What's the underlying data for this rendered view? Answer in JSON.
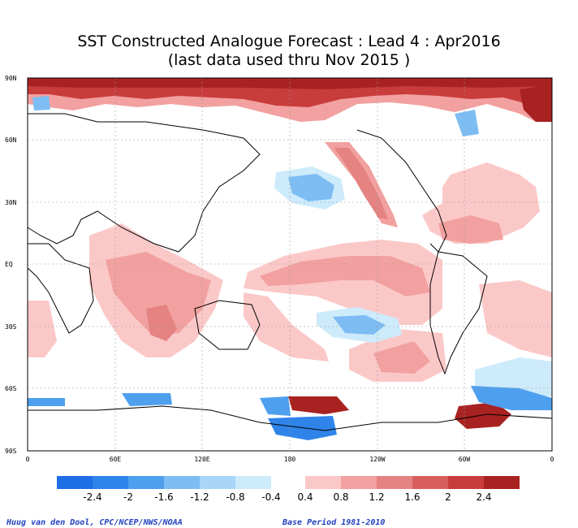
{
  "title_line1": "SST Constructed Analogue Forecast : Lead 4 : Apr2016",
  "title_line2": "(last data used thru Nov 2015 )",
  "lat_labels": [
    "90N",
    "60N",
    "30N",
    "EQ",
    "30S",
    "60S",
    "90S"
  ],
  "lon_labels": [
    "0",
    "60E",
    "120E",
    "180",
    "120W",
    "60W",
    "0"
  ],
  "colorbar": {
    "cold_labels": [
      "-2.4",
      "-2",
      "-1.6",
      "-1.2",
      "-0.8",
      "-0.4"
    ],
    "warm_labels": [
      "0.4",
      "0.8",
      "1.2",
      "1.6",
      "2",
      "2.4"
    ],
    "cold_colors": [
      "#1e6ee6",
      "#2f84ea",
      "#4ea0ef",
      "#7dbdf4",
      "#a9d6f8",
      "#cdebfb"
    ],
    "warm_colors": [
      "#fbc8c8",
      "#f2a0a0",
      "#e58282",
      "#d85e5e",
      "#c93c3c",
      "#a82222"
    ]
  },
  "footer_left": "Huug van den Dool, CPC/NCEP/NWS/NOAA",
  "footer_right": "Base Period 1981-2010"
}
